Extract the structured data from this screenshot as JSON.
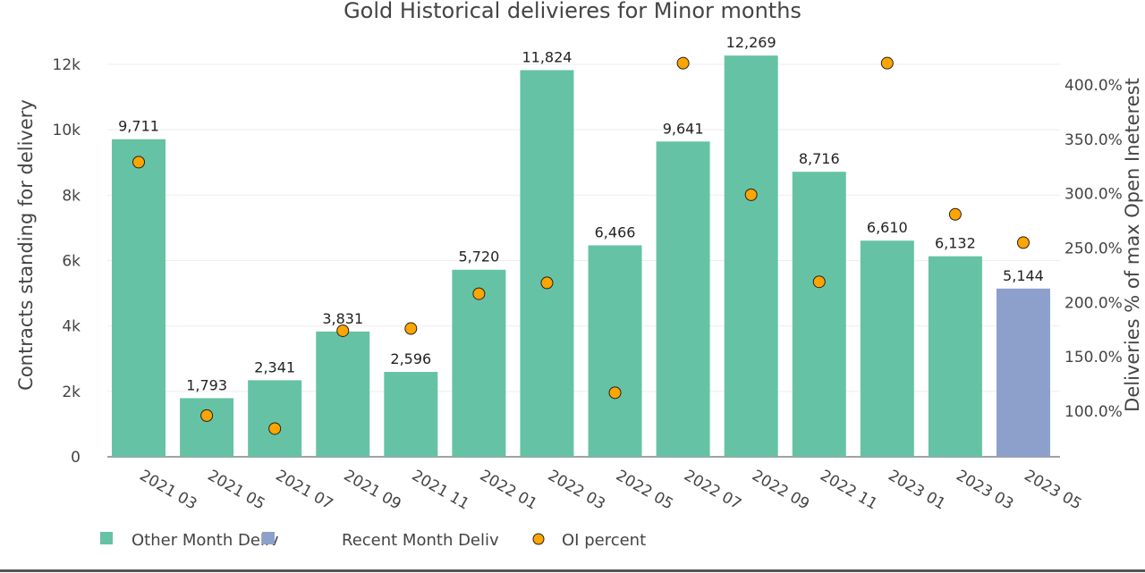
{
  "chart_data": {
    "type": "bar",
    "title": "Gold Historical delivieres for Minor months",
    "ylabel": "Contracts standing for delivery",
    "y2label": "Deliveries % of max Open Ineterest",
    "ylim": [
      0,
      12000
    ],
    "y2lim": [
      58,
      420
    ],
    "yticks": [
      "0",
      "2k",
      "4k",
      "6k",
      "8k",
      "10k",
      "12k"
    ],
    "ytick_values": [
      0,
      2000,
      4000,
      6000,
      8000,
      10000,
      12000
    ],
    "y2ticks": [
      "100.0%",
      "150.0%",
      "200.0%",
      "250.0%",
      "300.0%",
      "350.0%",
      "400.0%"
    ],
    "y2tick_values": [
      100,
      150,
      200,
      250,
      300,
      350,
      400
    ],
    "grid": true,
    "legend_position": "bottom-left",
    "categories": [
      "2021 03",
      "2021 05",
      "2021 07",
      "2021 09",
      "2021 11",
      "2022 01",
      "2022 03",
      "2022 05",
      "2022 07",
      "2022 09",
      "2022 11",
      "2023 01",
      "2023 03",
      "2023 05"
    ],
    "series": [
      {
        "name": "Other Month Deliv",
        "kind": "bar",
        "color": "#66c2a5",
        "values": [
          9711,
          1793,
          2341,
          3831,
          2596,
          5720,
          11824,
          6466,
          9641,
          12269,
          8716,
          6610,
          6132,
          null
        ],
        "labels": [
          "9,711",
          "1,793",
          "2,341",
          "3,831",
          "2,596",
          "5,720",
          "11,824",
          "6,466",
          "9,641",
          "12,269",
          "8,716",
          "6,610",
          "6,132",
          null
        ]
      },
      {
        "name": "Recent Month Deliv",
        "kind": "bar",
        "color": "#8da0cb",
        "values": [
          null,
          null,
          null,
          null,
          null,
          null,
          null,
          null,
          null,
          null,
          null,
          null,
          null,
          5144
        ],
        "labels": [
          null,
          null,
          null,
          null,
          null,
          null,
          null,
          null,
          null,
          null,
          null,
          null,
          null,
          "5,144"
        ]
      },
      {
        "name": "OI percent",
        "kind": "scatter",
        "axis": "y2",
        "color": "#ffa500",
        "values": [
          329,
          96,
          84,
          174,
          176,
          208,
          218,
          117,
          420,
          299,
          219,
          420,
          281,
          255
        ]
      }
    ]
  }
}
